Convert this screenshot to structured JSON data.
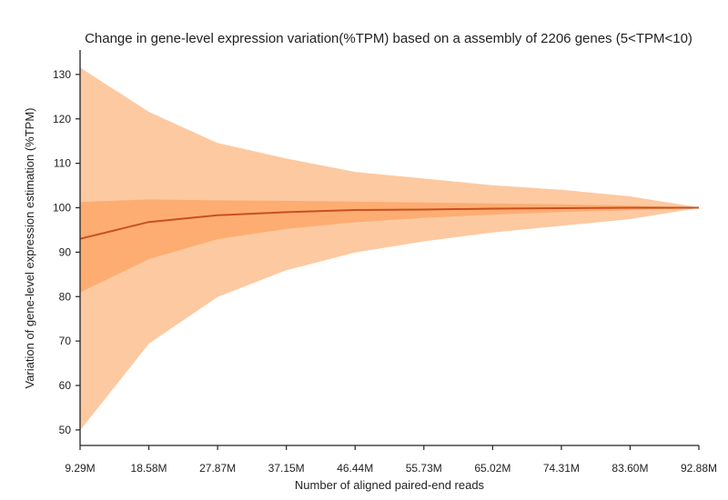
{
  "chart_data": {
    "type": "area",
    "title": "Change in gene-level expression variation(%TPM) based on a assembly of 2206 genes (5<TPM<10)",
    "xlabel": "Number of aligned paired-end reads",
    "ylabel": "Variation of gene-level expression estimation (%TPM)",
    "x_categories": [
      "9.29M",
      "18.58M",
      "27.87M",
      "37.15M",
      "46.44M",
      "55.73M",
      "65.02M",
      "74.31M",
      "83.60M",
      "92.88M"
    ],
    "y_ticks": [
      50,
      60,
      70,
      80,
      90,
      100,
      110,
      120,
      130
    ],
    "ylim": [
      46.5,
      135.5
    ],
    "grid": false,
    "series": [
      {
        "role": "outer_band",
        "color": "#fdc9a0",
        "upper": [
          131.5,
          121.5,
          114.5,
          111.0,
          108.0,
          106.5,
          105.0,
          104.0,
          102.5,
          100.0
        ],
        "lower": [
          50.0,
          69.5,
          80.0,
          86.0,
          90.0,
          92.5,
          94.5,
          96.0,
          97.5,
          100.0
        ]
      },
      {
        "role": "inner_band",
        "color": "#fdad72",
        "upper": [
          101.2,
          101.8,
          101.6,
          101.5,
          101.3,
          101.1,
          100.9,
          100.7,
          100.4,
          100.0
        ],
        "lower": [
          81.0,
          88.5,
          93.0,
          95.3,
          96.8,
          97.8,
          98.5,
          99.1,
          99.5,
          100.0
        ]
      },
      {
        "role": "median_line",
        "color": "#c8501e",
        "values": [
          93.0,
          96.8,
          98.3,
          99.0,
          99.5,
          99.6,
          99.8,
          99.9,
          100.0,
          100.0
        ]
      }
    ]
  }
}
